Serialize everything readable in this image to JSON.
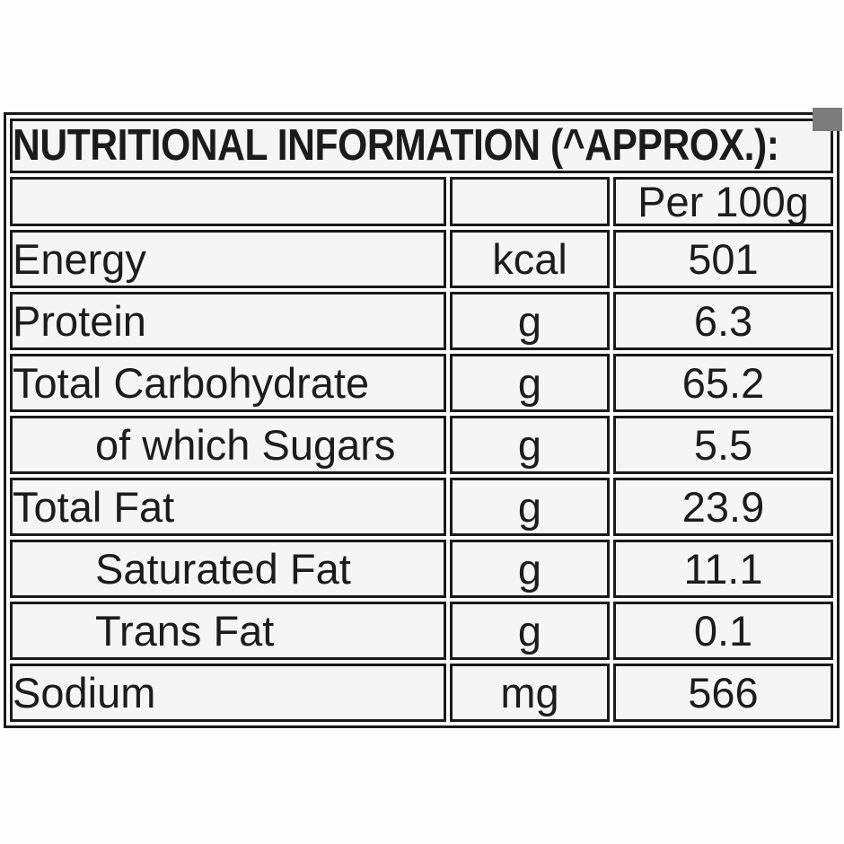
{
  "table": {
    "title": "NUTRITIONAL INFORMATION (^APPROX.):",
    "per_header": "Per 100g",
    "rows": [
      {
        "label": "Energy",
        "unit": "kcal",
        "value": "501"
      },
      {
        "label": "Protein",
        "unit": "g",
        "value": "6.3"
      },
      {
        "label": "Total Carbohydrate",
        "unit": "g",
        "value": "65.2"
      },
      {
        "label": "of which Sugars",
        "unit": "g",
        "value": "5.5"
      },
      {
        "label": "Total Fat",
        "unit": "g",
        "value": "23.9"
      },
      {
        "label": "Saturated Fat",
        "unit": "g",
        "value": "11.1"
      },
      {
        "label": "Trans Fat",
        "unit": "g",
        "value": "0.1"
      },
      {
        "label": "Sodium",
        "unit": "mg",
        "value": "566"
      }
    ]
  },
  "colors": {
    "border": "#1a1a1a",
    "cell_background": "#f5f5f5",
    "corner_marker": "#7c7c7c",
    "page_background": "#fdfdfd"
  }
}
